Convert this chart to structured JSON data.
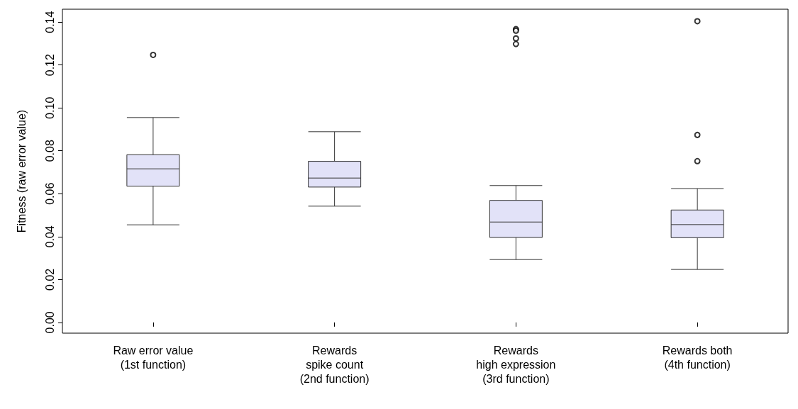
{
  "chart_data": {
    "type": "box",
    "ylabel": "Fitness (raw error value)",
    "categories": [
      "Raw error value\n(1st function)",
      "Rewards\nspike count\n(2nd function)",
      "Rewards\nhigh expression\n(3rd function)",
      "Rewards both\n(4th function)"
    ],
    "color": "#e2e2f8",
    "boxes": [
      {
        "low": 0.0455,
        "q1": 0.0635,
        "median": 0.0716,
        "q3": 0.0782,
        "high": 0.0955,
        "outliers": [
          0.1247
        ]
      },
      {
        "low": 0.0542,
        "q1": 0.0631,
        "median": 0.0673,
        "q3": 0.0751,
        "high": 0.0889
      },
      {
        "low": 0.0293,
        "q1": 0.0396,
        "median": 0.0468,
        "q3": 0.0569,
        "high": 0.0638,
        "outliers": [
          0.1367,
          0.136,
          0.1324,
          0.1298
        ]
      },
      {
        "low": 0.0247,
        "q1": 0.0395,
        "median": 0.0456,
        "q3": 0.0524,
        "high": 0.0624,
        "outliers": [
          0.1404,
          0.0874,
          0.0752
        ]
      }
    ],
    "ylim": [
      -0.005,
      0.146
    ],
    "yticks": [
      {
        "value": 0,
        "label": "0.00"
      },
      {
        "value": 0.02,
        "label": "0.02"
      },
      {
        "value": 0.04,
        "label": "0.04"
      },
      {
        "value": 0.06,
        "label": "0.06"
      },
      {
        "value": 0.08,
        "label": "0.08"
      },
      {
        "value": 0.1,
        "label": "0.10"
      },
      {
        "value": 0.12,
        "label": "0.12"
      },
      {
        "value": 0.14,
        "label": "0.14"
      }
    ],
    "grid": false
  }
}
